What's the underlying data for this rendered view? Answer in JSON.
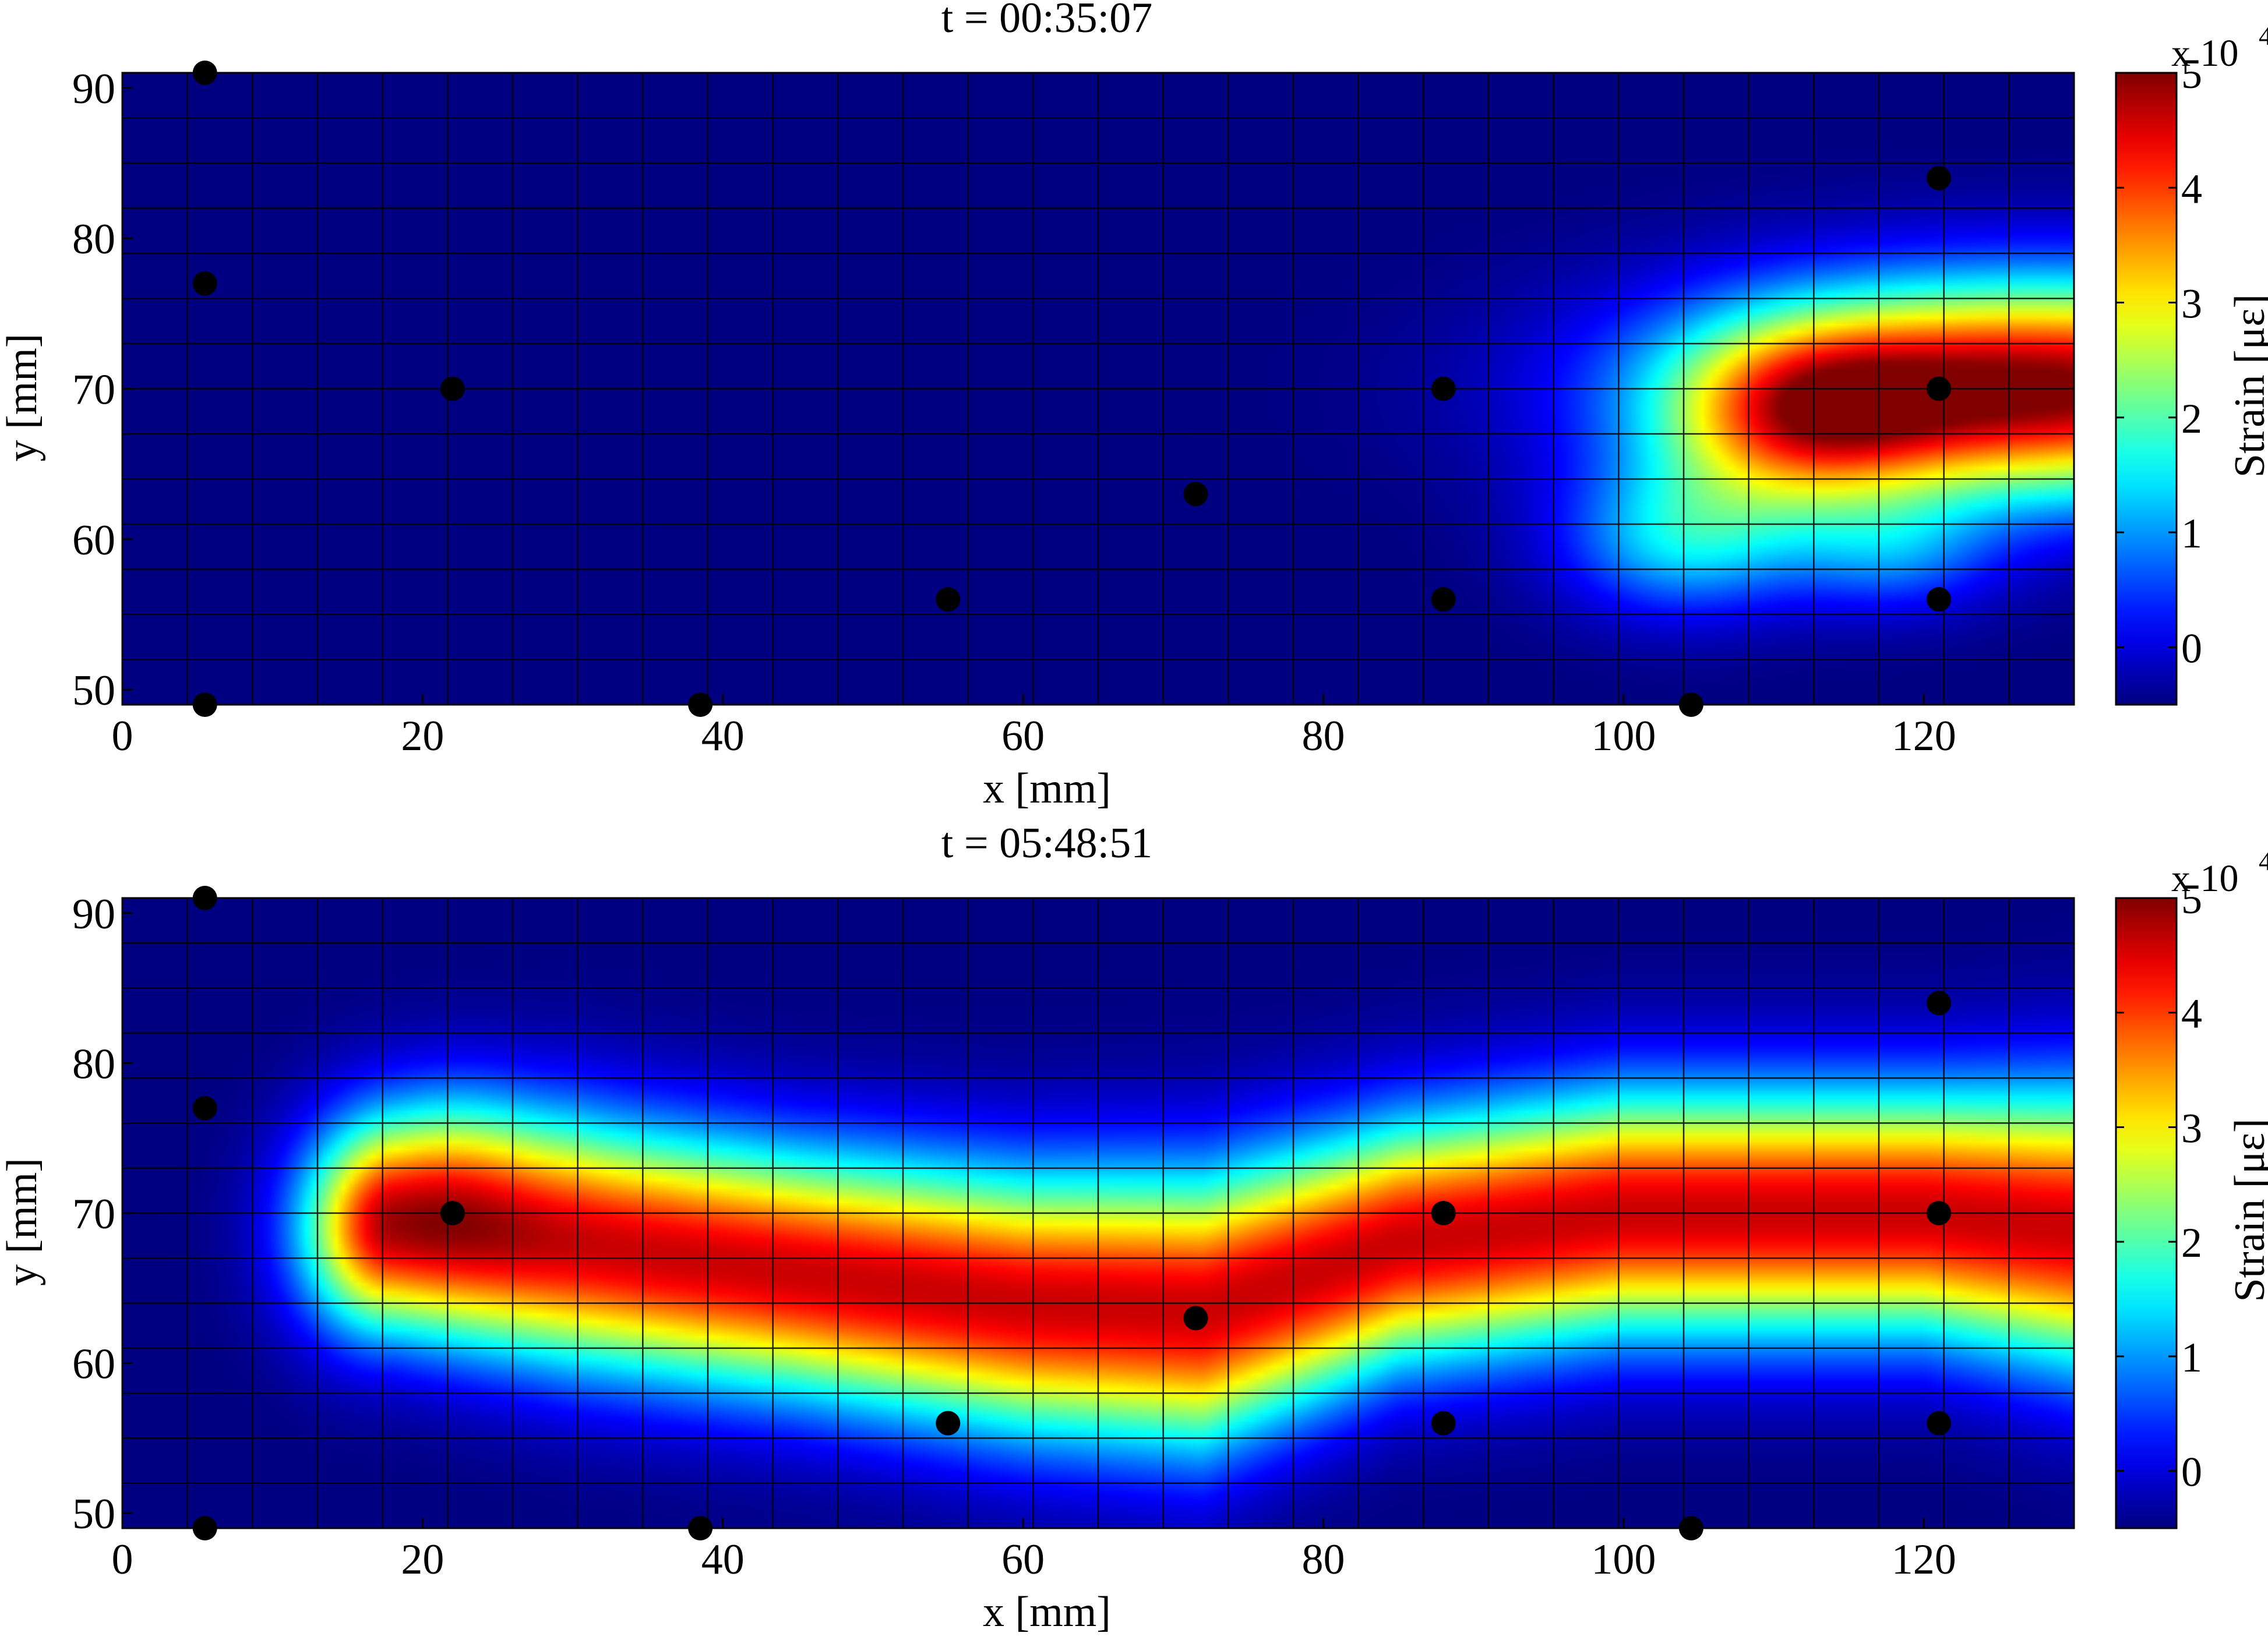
{
  "chart_data": [
    {
      "type": "heatmap",
      "title": "t = 00:35:07",
      "xlabel": "x [mm]",
      "ylabel": "y [mm]",
      "xlim": [
        0,
        130
      ],
      "ylim": [
        49,
        91
      ],
      "xticks": [
        "0",
        "20",
        "40",
        "60",
        "80",
        "100",
        "120"
      ],
      "yticks": [
        "50",
        "60",
        "70",
        "80",
        "90"
      ],
      "grid": true,
      "colormap": "jet",
      "colorbar": {
        "label": "Strain [με]",
        "multiplier": "x 10",
        "multiplier_exp": "4",
        "range": [
          -0.5,
          5
        ],
        "ticks": [
          "0",
          "1",
          "2",
          "3",
          "4",
          "5"
        ]
      },
      "sensors": [
        {
          "x": 5.5,
          "y": 91
        },
        {
          "x": 5.5,
          "y": 77
        },
        {
          "x": 22,
          "y": 70
        },
        {
          "x": 5.5,
          "y": 49
        },
        {
          "x": 38.5,
          "y": 49
        },
        {
          "x": 55,
          "y": 56
        },
        {
          "x": 71.5,
          "y": 63
        },
        {
          "x": 88,
          "y": 70
        },
        {
          "x": 88,
          "y": 56
        },
        {
          "x": 104.5,
          "y": 49
        },
        {
          "x": 121,
          "y": 84
        },
        {
          "x": 121,
          "y": 70
        },
        {
          "x": 121,
          "y": 56
        }
      ],
      "hotspots": [
        {
          "x": 128,
          "y": 70,
          "sx": 22,
          "sy": 7,
          "v": 5.1
        },
        {
          "x": 112,
          "y": 68,
          "sx": 9,
          "sy": 6,
          "v": 2.2
        },
        {
          "x": 104,
          "y": 60,
          "sx": 8,
          "sy": 5,
          "v": 1.3
        },
        {
          "x": 118,
          "y": 59,
          "sx": 7,
          "sy": 4,
          "v": 0.6
        }
      ]
    },
    {
      "type": "heatmap",
      "title": "t = 05:48:51",
      "xlabel": "x [mm]",
      "ylabel": "y [mm]",
      "xlim": [
        0,
        130
      ],
      "ylim": [
        49,
        91
      ],
      "xticks": [
        "0",
        "20",
        "40",
        "60",
        "80",
        "100",
        "120"
      ],
      "yticks": [
        "50",
        "60",
        "70",
        "80",
        "90"
      ],
      "grid": true,
      "colormap": "jet",
      "colorbar": {
        "label": "Strain [με]",
        "multiplier": "x 10",
        "multiplier_exp": "4",
        "range": [
          -0.5,
          5
        ],
        "ticks": [
          "0",
          "1",
          "2",
          "3",
          "4",
          "5"
        ]
      },
      "sensors": [
        {
          "x": 5.5,
          "y": 91
        },
        {
          "x": 5.5,
          "y": 77
        },
        {
          "x": 22,
          "y": 70
        },
        {
          "x": 5.5,
          "y": 49
        },
        {
          "x": 38.5,
          "y": 49
        },
        {
          "x": 55,
          "y": 56
        },
        {
          "x": 71.5,
          "y": 63
        },
        {
          "x": 88,
          "y": 70
        },
        {
          "x": 88,
          "y": 56
        },
        {
          "x": 104.5,
          "y": 49
        },
        {
          "x": 121,
          "y": 84
        },
        {
          "x": 121,
          "y": 70
        },
        {
          "x": 121,
          "y": 56
        }
      ],
      "ridge": [
        [
          18,
          69
        ],
        [
          30,
          68
        ],
        [
          45,
          66
        ],
        [
          60,
          64
        ],
        [
          72,
          63.5
        ],
        [
          85,
          68
        ],
        [
          100,
          70
        ],
        [
          120,
          70
        ],
        [
          130,
          69
        ]
      ],
      "ridge_width": [
        [
          18,
          7
        ],
        [
          30,
          8
        ],
        [
          45,
          8
        ],
        [
          60,
          8.5
        ],
        [
          72,
          9
        ],
        [
          85,
          8
        ],
        [
          100,
          8
        ],
        [
          120,
          8
        ],
        [
          130,
          9
        ]
      ],
      "ridge_peak": 4.6
    }
  ]
}
